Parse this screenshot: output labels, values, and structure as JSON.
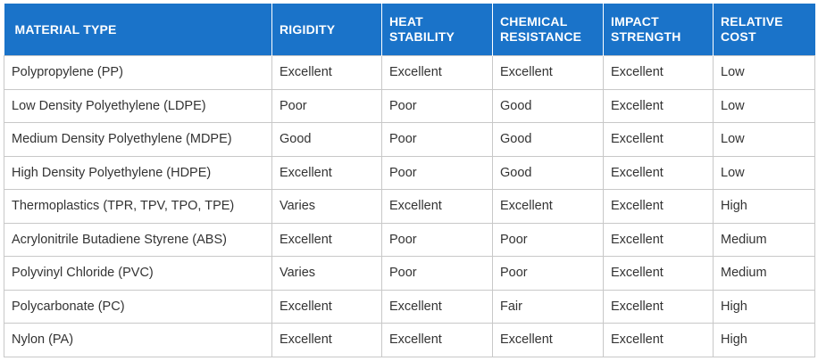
{
  "table": {
    "headers": [
      {
        "line1": "MATERIAL TYPE",
        "line2": ""
      },
      {
        "line1": "RIGIDITY",
        "line2": ""
      },
      {
        "line1": "HEAT",
        "line2": "STABILITY"
      },
      {
        "line1": "CHEMICAL",
        "line2": "RESISTANCE"
      },
      {
        "line1": "IMPACT",
        "line2": "STRENGTH"
      },
      {
        "line1": "RELATIVE",
        "line2": "COST"
      }
    ],
    "rows": [
      [
        "Polypropylene (PP)",
        "Excellent",
        "Excellent",
        "Excellent",
        "Excellent",
        "Low"
      ],
      [
        "Low Density Polyethylene (LDPE)",
        "Poor",
        "Poor",
        "Good",
        "Excellent",
        "Low"
      ],
      [
        "Medium Density Polyethylene (MDPE)",
        "Good",
        "Poor",
        "Good",
        "Excellent",
        "Low"
      ],
      [
        "High Density Polyethylene (HDPE)",
        "Excellent",
        "Poor",
        "Good",
        "Excellent",
        "Low"
      ],
      [
        "Thermoplastics (TPR, TPV, TPO, TPE)",
        "Varies",
        "Excellent",
        "Excellent",
        "Excellent",
        "High"
      ],
      [
        "Acrylonitrile Butadiene Styrene (ABS)",
        "Excellent",
        "Poor",
        "Poor",
        "Excellent",
        "Medium"
      ],
      [
        "Polyvinyl Chloride (PVC)",
        "Varies",
        "Poor",
        "Poor",
        "Excellent",
        "Medium"
      ],
      [
        "Polycarbonate (PC)",
        "Excellent",
        "Excellent",
        "Fair",
        "Excellent",
        "High"
      ],
      [
        "Nylon (PA)",
        "Excellent",
        "Excellent",
        "Excellent",
        "Excellent",
        "High"
      ]
    ]
  },
  "colors": {
    "header_bg": "#1a73c9",
    "header_text": "#ffffff",
    "cell_text": "#333333",
    "border": "#c8c8c8"
  }
}
